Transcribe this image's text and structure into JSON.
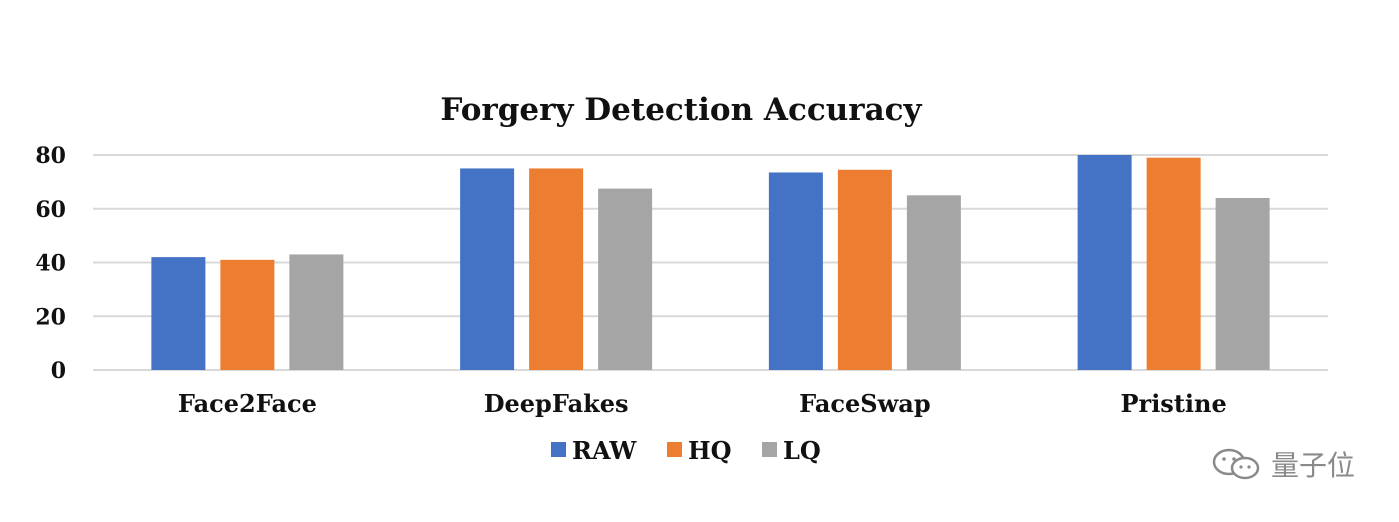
{
  "chart_data": {
    "type": "bar",
    "title": "Forgery Detection Accuracy",
    "categories": [
      "Face2Face",
      "DeepFakes",
      "FaceSwap",
      "Pristine"
    ],
    "series": [
      {
        "name": "RAW",
        "color": "#4472C4",
        "values": [
          42,
          75,
          73.5,
          80
        ]
      },
      {
        "name": "HQ",
        "color": "#ED7D31",
        "values": [
          41,
          75,
          74.5,
          79
        ]
      },
      {
        "name": "LQ",
        "color": "#A5A5A5",
        "values": [
          43,
          67.5,
          65,
          64
        ]
      }
    ],
    "yticks": [
      0,
      20,
      40,
      60,
      80
    ],
    "ylim": [
      0,
      80
    ],
    "grid": true,
    "legend_position": "bottom",
    "xlabel": "",
    "ylabel": ""
  },
  "watermark": {
    "text": "量子位",
    "icon": "wechat-icon"
  }
}
